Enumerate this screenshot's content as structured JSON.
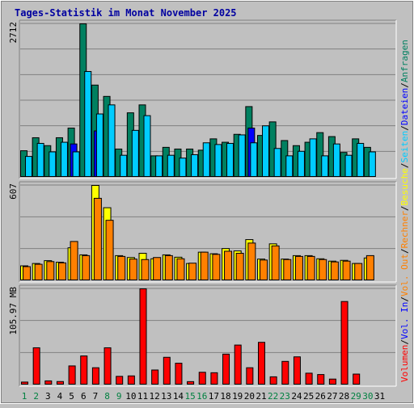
{
  "chart_data": {
    "type": "bar",
    "title": "Tages-Statistik im Monat November 2025",
    "days": [
      "1",
      "2",
      "3",
      "4",
      "5",
      "6",
      "7",
      "8",
      "9",
      "10",
      "11",
      "12",
      "13",
      "14",
      "15",
      "16",
      "17",
      "18",
      "19",
      "20",
      "21",
      "22",
      "23",
      "24",
      "25",
      "26",
      "27",
      "28",
      "29",
      "30",
      "31"
    ],
    "weekend_days": [
      "1",
      "2",
      "8",
      "9",
      "15",
      "16",
      "22",
      "23",
      "29",
      "30"
    ],
    "panels": [
      {
        "id": "top",
        "ymax_label": "2712",
        "ymax": 2712,
        "series": [
          {
            "name": "Anfragen",
            "color": "#008060",
            "values": [
              470,
              700,
              560,
              700,
              870,
              2712,
              1630,
              1430,
              500,
              1140,
              1280,
              380,
              530,
              500,
              500,
              480,
              680,
              620,
              760,
              1250,
              740,
              980,
              650,
              560,
              620,
              790,
              720,
              440,
              680,
              530,
              0
            ]
          },
          {
            "name": "Dateien",
            "color": "#0000ff",
            "values": [
              0,
              0,
              0,
              0,
              590,
              0,
              820,
              0,
              0,
              0,
              0,
              0,
              0,
              0,
              0,
              0,
              0,
              0,
              0,
              870,
              0,
              0,
              0,
              0,
              0,
              0,
              0,
              0,
              0,
              0,
              0
            ]
          },
          {
            "name": "Seiten",
            "color": "#00ccff",
            "values": [
              370,
              600,
              450,
              620,
              450,
              1870,
              1120,
              1280,
              390,
              830,
              1090,
              380,
              390,
              340,
              400,
              610,
              580,
              600,
              750,
              610,
              910,
              510,
              380,
              460,
              680,
              380,
              590,
              390,
              600,
              450,
              0
            ]
          }
        ]
      },
      {
        "id": "middle",
        "ymax_label": "607",
        "ymax": 607,
        "series": [
          {
            "name": "Besuche",
            "color": "#ffff00",
            "values": [
              95,
              110,
              128,
              118,
              210,
              165,
              607,
              465,
              160,
              148,
              175,
              140,
              165,
              150,
              110,
              182,
              172,
              205,
              190,
              262,
              138,
              235,
              138,
              160,
              160,
              140,
              125,
              130,
              110,
              145,
              0
            ]
          },
          {
            "name": "Rechner",
            "color": "#ff8000",
            "values": [
              90,
              105,
              122,
              114,
              250,
              160,
              525,
              385,
              155,
              138,
              135,
              148,
              160,
              140,
              112,
              182,
              168,
              188,
              175,
              240,
              132,
              222,
              135,
              155,
              155,
              135,
              120,
              125,
              110,
              160,
              0
            ]
          }
        ]
      },
      {
        "id": "bottom",
        "ymax_label": "105.97 MB",
        "ymax": 105.97,
        "series": [
          {
            "name": "Volumen",
            "color": "#ff0000",
            "values": [
              3.2,
              41,
              4.5,
              3.8,
              21,
              32,
              19,
              41,
              9.5,
              10,
              105.97,
              16.5,
              30.5,
              24,
              3.7,
              14,
              13.5,
              34,
              44,
              19,
              47,
              9,
              26,
              31,
              13,
              11.5,
              6.5,
              92,
              12,
              0,
              0
            ]
          },
          {
            "name": "Vol. In",
            "color": "#0000ff",
            "values": []
          },
          {
            "name": "Vol. Out",
            "color": "#ff8000",
            "values": []
          }
        ]
      }
    ],
    "right_legend": [
      {
        "text": "Anfragen",
        "color": "#008060"
      },
      {
        "text": "Dateien",
        "color": "#0000ff"
      },
      {
        "text": "Seiten",
        "color": "#00ccff"
      },
      {
        "text": "Besuche",
        "color": "#ffff00"
      },
      {
        "text": "Rechner",
        "color": "#ff8000"
      },
      {
        "text": "Vol. Out",
        "color": "#ff8000"
      },
      {
        "text": "Vol. In",
        "color": "#0000ff"
      },
      {
        "text": "Volumen",
        "color": "#ff0000"
      }
    ],
    "colors": {
      "background": "#c0c0c0",
      "title": "#0000a0",
      "weekday_label": "#000000",
      "weekend_label": "#008040",
      "gridline": "#808080"
    }
  }
}
